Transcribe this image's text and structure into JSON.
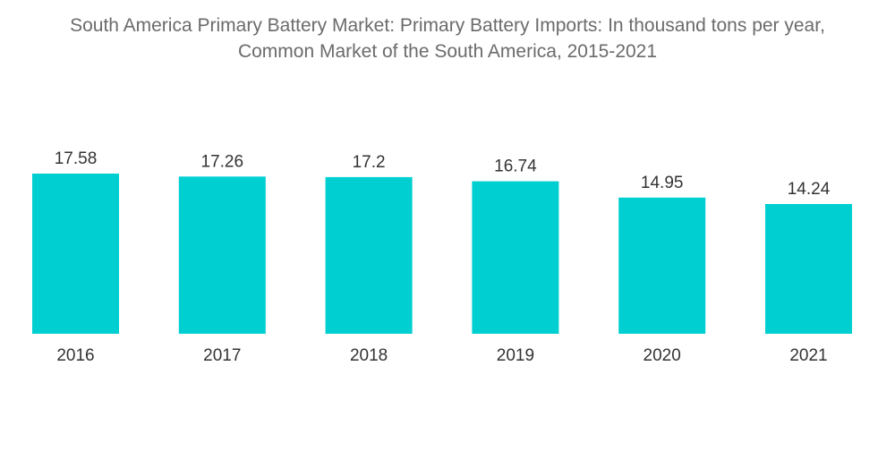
{
  "chart_data": {
    "type": "bar",
    "title_lines": [
      "South America Primary Battery Market: Primary Battery Imports: In thousand tons per year,",
      "Common Market of the South America, 2015-2021"
    ],
    "categories": [
      "2016",
      "2017",
      "2018",
      "2019",
      "2020",
      "2021"
    ],
    "values": [
      17.58,
      17.26,
      17.2,
      16.74,
      14.95,
      14.24
    ],
    "value_labels": [
      "17.58",
      "17.26",
      "17.2",
      "16.74",
      "14.95",
      "14.24"
    ],
    "xlabel": "",
    "ylabel": "",
    "ylim": [
      0,
      17.58
    ],
    "grid": false,
    "legend": "none",
    "bar_color": "#00cfd1"
  }
}
